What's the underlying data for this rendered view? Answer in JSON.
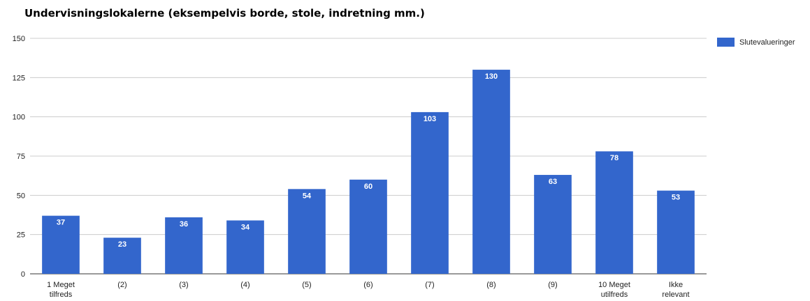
{
  "chart_data": {
    "type": "bar",
    "title": "Undervisningslokalerne (eksempelvis borde, stole, indretning mm.)",
    "categories": [
      [
        "1 Meget",
        "tilfreds"
      ],
      [
        "(2)"
      ],
      [
        "(3)"
      ],
      [
        "(4)"
      ],
      [
        "(5)"
      ],
      [
        "(6)"
      ],
      [
        "(7)"
      ],
      [
        "(8)"
      ],
      [
        "(9)"
      ],
      [
        "10 Meget",
        "utilfreds"
      ],
      [
        "Ikke",
        "relevant"
      ]
    ],
    "series": [
      {
        "name": "Slutevalueringer",
        "values": [
          37,
          23,
          36,
          34,
          54,
          60,
          103,
          130,
          63,
          78,
          53
        ]
      }
    ],
    "ylim": [
      0,
      150
    ],
    "yticks": [
      0,
      25,
      50,
      75,
      100,
      125,
      150
    ],
    "grid": true,
    "legend_position": "right",
    "bar_color": "#3366cc"
  }
}
